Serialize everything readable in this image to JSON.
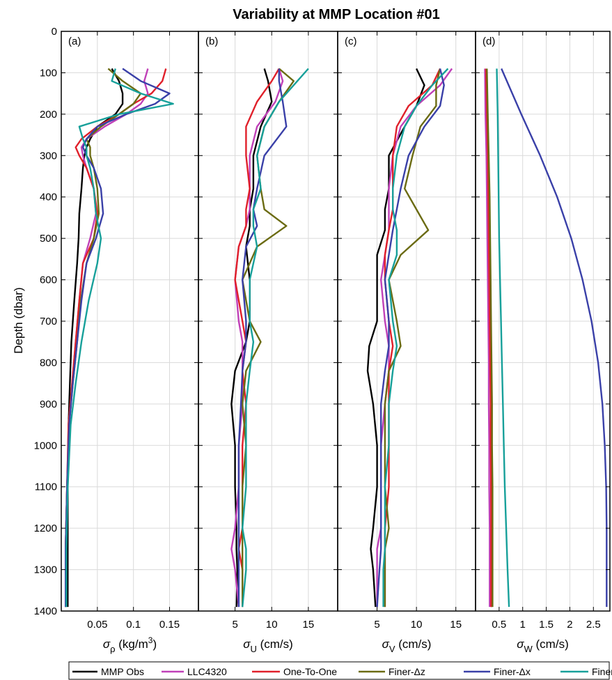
{
  "title": "Variability at MMP Location #01",
  "ylabel": "Depth (dbar)",
  "y_ticks": [
    "0",
    "100",
    "200",
    "300",
    "400",
    "500",
    "600",
    "700",
    "800",
    "900",
    "1000",
    "1100",
    "1200",
    "1300",
    "1400"
  ],
  "legend": [
    {
      "name": "MMP Obs",
      "color": "#000000"
    },
    {
      "name": "LLC4320",
      "color": "#c040b8"
    },
    {
      "name": "One-To-One",
      "color": "#e0202a"
    },
    {
      "name": "Finer-Δz",
      "color": "#6b6b12"
    },
    {
      "name": "Finer-Δx",
      "color": "#3a40a8"
    },
    {
      "name": "Finer-Both",
      "color": "#17a09a"
    }
  ],
  "chart_data": [
    {
      "type": "line",
      "panel": "(a)",
      "xlabel_symbol": "σ",
      "xlabel_sub": "ρ",
      "xlabel_unit": " (kg/m",
      "xlabel_sup": "3",
      "xlabel_end": ")",
      "xlim": [
        0,
        0.19
      ],
      "ylim": [
        1400,
        0
      ],
      "x_ticks": [
        0.05,
        0.1,
        0.15
      ],
      "x_tick_labels": [
        "0.05",
        "0.1",
        "0.15"
      ],
      "y": [
        90,
        120,
        150,
        175,
        200,
        230,
        260,
        280,
        300,
        330,
        380,
        440,
        500,
        560,
        650,
        750,
        850,
        950,
        1100,
        1250,
        1390
      ],
      "series": [
        {
          "name": "MMP Obs",
          "values": [
            0.07,
            0.08,
            0.085,
            0.085,
            0.075,
            0.05,
            0.04,
            0.035,
            0.032,
            0.03,
            0.028,
            0.025,
            0.024,
            0.022,
            0.018,
            0.014,
            0.012,
            0.01,
            0.009,
            0.009,
            0.009
          ]
        },
        {
          "name": "LLC4320",
          "values": [
            0.12,
            0.115,
            0.12,
            0.11,
            0.09,
            0.06,
            0.035,
            0.028,
            0.03,
            0.035,
            0.045,
            0.048,
            0.04,
            0.03,
            0.025,
            0.02,
            0.015,
            0.01,
            0.008,
            0.006,
            0.006
          ]
        },
        {
          "name": "One-To-One",
          "values": [
            0.145,
            0.14,
            0.125,
            0.1,
            0.08,
            0.05,
            0.028,
            0.02,
            0.025,
            0.035,
            0.045,
            0.05,
            0.045,
            0.03,
            0.025,
            0.02,
            0.015,
            0.01,
            0.008,
            0.006,
            0.006
          ]
        },
        {
          "name": "Finer-Δz",
          "values": [
            0.065,
            0.085,
            0.11,
            0.1,
            0.08,
            0.055,
            0.035,
            0.04,
            0.04,
            0.045,
            0.05,
            0.052,
            0.045,
            0.035,
            0.027,
            0.022,
            0.016,
            0.011,
            0.008,
            0.006,
            0.006
          ]
        },
        {
          "name": "Finer-Δx",
          "values": [
            0.085,
            0.11,
            0.15,
            0.13,
            0.09,
            0.05,
            0.035,
            0.03,
            0.035,
            0.045,
            0.055,
            0.058,
            0.048,
            0.035,
            0.028,
            0.022,
            0.016,
            0.011,
            0.008,
            0.006,
            0.006
          ]
        },
        {
          "name": "Finer-Both",
          "values": [
            0.075,
            0.07,
            0.11,
            0.155,
            0.08,
            0.025,
            0.03,
            0.035,
            0.035,
            0.04,
            0.045,
            0.048,
            0.055,
            0.05,
            0.038,
            0.028,
            0.02,
            0.013,
            0.009,
            0.007,
            0.007
          ]
        }
      ]
    },
    {
      "type": "line",
      "panel": "(b)",
      "xlabel_symbol": "σ",
      "xlabel_sub": "U",
      "xlabel_unit": " (cm/s)",
      "xlabel_sup": "",
      "xlabel_end": "",
      "xlim": [
        0,
        19
      ],
      "ylim": [
        1400,
        0
      ],
      "x_ticks": [
        5,
        10,
        15
      ],
      "x_tick_labels": [
        "5",
        "10",
        "15"
      ],
      "y": [
        90,
        120,
        170,
        230,
        300,
        380,
        430,
        470,
        520,
        600,
        700,
        750,
        820,
        900,
        1000,
        1100,
        1200,
        1250,
        1300,
        1390
      ],
      "series": [
        {
          "name": "MMP Obs",
          "values": [
            9,
            9.5,
            10,
            8.5,
            7.5,
            7.5,
            7,
            7,
            6.5,
            7,
            7,
            6.5,
            5,
            4.5,
            5,
            5,
            5.2,
            5.2,
            5.3,
            5.2
          ]
        },
        {
          "name": "LLC4320",
          "values": [
            11,
            11.5,
            10.5,
            8,
            7,
            7,
            7,
            6.5,
            5.5,
            5,
            5.5,
            6,
            6,
            6,
            5.5,
            5.5,
            5,
            4.5,
            5,
            5.5
          ]
        },
        {
          "name": "One-To-One",
          "values": [
            11,
            10,
            8,
            6.5,
            6.5,
            7,
            6.5,
            6.5,
            5.5,
            5,
            6,
            6.5,
            6,
            6.5,
            6,
            6,
            6,
            5.5,
            6,
            6
          ]
        },
        {
          "name": "Finer-Δz",
          "values": [
            11,
            13,
            11,
            9,
            8,
            8.5,
            9,
            12,
            8,
            6,
            7,
            8.5,
            6.5,
            6,
            6.5,
            6,
            6,
            6,
            6,
            6
          ]
        },
        {
          "name": "Finer-Δx",
          "values": [
            11,
            11,
            11.5,
            12,
            9,
            8,
            7.5,
            8,
            6.5,
            6,
            6.5,
            6.5,
            6,
            5.8,
            5.5,
            5.5,
            5.5,
            5.5,
            5.5,
            5.5
          ]
        },
        {
          "name": "Finer-Both",
          "values": [
            15,
            13.5,
            11,
            9,
            8,
            8.5,
            7.5,
            7.5,
            8,
            7,
            7,
            7.5,
            7,
            6.5,
            6.5,
            6.5,
            6,
            6.5,
            6.5,
            6
          ]
        }
      ]
    },
    {
      "type": "line",
      "panel": "(c)",
      "xlabel_symbol": "σ",
      "xlabel_sub": "V",
      "xlabel_unit": " (cm/s)",
      "xlabel_sup": "",
      "xlabel_end": "",
      "xlim": [
        0,
        17.5
      ],
      "ylim": [
        1400,
        0
      ],
      "x_ticks": [
        5,
        10,
        15
      ],
      "x_tick_labels": [
        "5",
        "10",
        "15"
      ],
      "y": [
        90,
        130,
        180,
        230,
        300,
        380,
        430,
        480,
        540,
        600,
        700,
        760,
        820,
        900,
        1000,
        1100,
        1200,
        1250,
        1300,
        1390
      ],
      "series": [
        {
          "name": "MMP Obs",
          "values": [
            10,
            11,
            10,
            8.5,
            6.5,
            6.5,
            6,
            6,
            5,
            5,
            5,
            4,
            3.8,
            4.5,
            5,
            5,
            4.5,
            4.2,
            4.5,
            4.8
          ]
        },
        {
          "name": "LLC4320",
          "values": [
            14.5,
            13,
            10,
            8,
            7,
            6.5,
            6.5,
            6.5,
            6,
            5.5,
            6,
            6.5,
            6.5,
            6,
            5.5,
            5.5,
            5.5,
            5,
            5,
            5
          ]
        },
        {
          "name": "One-To-One",
          "values": [
            13,
            12,
            9,
            7.5,
            7,
            7,
            7,
            6.5,
            6,
            6,
            6.5,
            7,
            6.5,
            6.5,
            6.5,
            6.5,
            6,
            6,
            6,
            6
          ]
        },
        {
          "name": "Finer-Δz",
          "values": [
            13,
            12.5,
            12.5,
            10.5,
            9.5,
            8.5,
            10,
            11.5,
            8,
            6.5,
            7.5,
            8,
            6.5,
            6,
            6,
            6,
            6.5,
            6,
            6,
            6
          ]
        },
        {
          "name": "Finer-Δx",
          "values": [
            13,
            13.5,
            13,
            11,
            9,
            8,
            7.5,
            7,
            6.5,
            6,
            6.5,
            6.5,
            6,
            5.5,
            5.5,
            5.5,
            5.5,
            5.5,
            5.3,
            5
          ]
        },
        {
          "name": "Finer-Both",
          "values": [
            14,
            12,
            10,
            8.5,
            7.5,
            7,
            7,
            7.5,
            7.5,
            6.5,
            7,
            7.5,
            7,
            6.5,
            6.5,
            6,
            6,
            6,
            5.8,
            5.8
          ]
        }
      ]
    },
    {
      "type": "line",
      "panel": "(d)",
      "xlabel_symbol": "σ",
      "xlabel_sub": "W",
      "xlabel_unit": " (cm/s)",
      "xlabel_sup": "",
      "xlabel_end": "",
      "xlim": [
        0,
        2.85
      ],
      "ylim": [
        1400,
        0
      ],
      "x_ticks": [
        0.5,
        1,
        1.5,
        2,
        2.5
      ],
      "x_tick_labels": [
        "0.5",
        "1",
        "1.5",
        "2",
        "2.5"
      ],
      "y": [
        90,
        200,
        300,
        400,
        500,
        600,
        700,
        800,
        900,
        1000,
        1100,
        1200,
        1300,
        1390
      ],
      "series": [
        {
          "name": "MMP Obs",
          "values": [
            0.22,
            0.24,
            0.26,
            0.28,
            0.29,
            0.3,
            0.31,
            0.32,
            0.32,
            0.33,
            0.33,
            0.34,
            0.34,
            0.34
          ]
        },
        {
          "name": "LLC4320",
          "values": [
            0.2,
            0.21,
            0.23,
            0.24,
            0.25,
            0.26,
            0.27,
            0.28,
            0.28,
            0.29,
            0.29,
            0.3,
            0.3,
            0.3
          ]
        },
        {
          "name": "One-To-One",
          "values": [
            0.22,
            0.24,
            0.26,
            0.27,
            0.28,
            0.29,
            0.3,
            0.31,
            0.32,
            0.32,
            0.33,
            0.33,
            0.33,
            0.33
          ]
        },
        {
          "name": "Finer-Δz",
          "values": [
            0.24,
            0.26,
            0.28,
            0.3,
            0.31,
            0.32,
            0.33,
            0.34,
            0.35,
            0.35,
            0.36,
            0.36,
            0.36,
            0.36
          ]
        },
        {
          "name": "Finer-Δx",
          "values": [
            0.55,
            0.97,
            1.37,
            1.73,
            2.03,
            2.27,
            2.46,
            2.6,
            2.69,
            2.74,
            2.77,
            2.78,
            2.78,
            2.78
          ]
        },
        {
          "name": "Finer-Both",
          "values": [
            0.45,
            0.47,
            0.48,
            0.49,
            0.5,
            0.52,
            0.54,
            0.56,
            0.58,
            0.6,
            0.62,
            0.65,
            0.68,
            0.71
          ]
        }
      ]
    }
  ]
}
